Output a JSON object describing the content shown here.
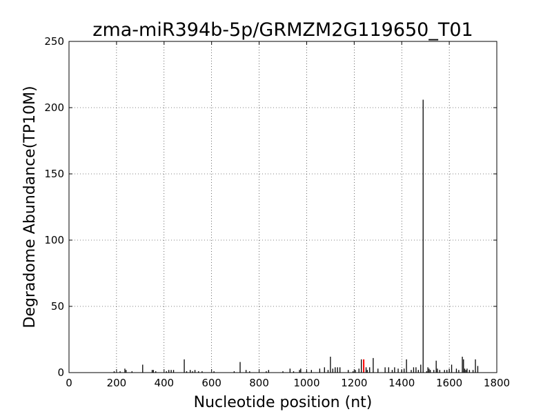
{
  "chart_data": {
    "type": "bar",
    "title": "zma-miR394b-5p/GRMZM2G119650_T01",
    "xlabel": "Nucleotide position (nt)",
    "ylabel": "Degradome Abundance(TP10M)",
    "xlim": [
      0,
      1800
    ],
    "ylim": [
      0,
      250
    ],
    "xticks": [
      0,
      200,
      400,
      600,
      800,
      1000,
      1200,
      1400,
      1600,
      1800
    ],
    "yticks": [
      0,
      50,
      100,
      150,
      200,
      250
    ],
    "grid": true,
    "bar_color": "#000000",
    "highlight_color": "#ff0000",
    "x": [
      190,
      215,
      235,
      240,
      265,
      310,
      350,
      355,
      365,
      410,
      420,
      430,
      440,
      485,
      495,
      510,
      520,
      530,
      545,
      560,
      610,
      695,
      720,
      745,
      760,
      830,
      840,
      900,
      930,
      945,
      970,
      975,
      1000,
      1020,
      1055,
      1075,
      1090,
      1100,
      1110,
      1120,
      1130,
      1140,
      1175,
      1195,
      1205,
      1220,
      1230,
      1250,
      1255,
      1265,
      1280,
      1300,
      1330,
      1345,
      1360,
      1370,
      1385,
      1400,
      1410,
      1420,
      1440,
      1450,
      1460,
      1470,
      1480,
      1490,
      1505,
      1510,
      1515,
      1520,
      1535,
      1545,
      1550,
      1560,
      1580,
      1590,
      1600,
      1610,
      1630,
      1640,
      1655,
      1660,
      1665,
      1670,
      1675,
      1685,
      1700,
      1710,
      1720
    ],
    "values": [
      1,
      1,
      3,
      2,
      1,
      6,
      2,
      2,
      1,
      1,
      2,
      2,
      2,
      10,
      1,
      2,
      1,
      2,
      1,
      1,
      1,
      1,
      8,
      2,
      1,
      1,
      2,
      1,
      3,
      1,
      2,
      3,
      1,
      2,
      3,
      4,
      2,
      12,
      3,
      4,
      4,
      4,
      2,
      1,
      2,
      3,
      10,
      4,
      2,
      4,
      11,
      3,
      4,
      4,
      2,
      4,
      3,
      2,
      3,
      10,
      2,
      4,
      4,
      2,
      6,
      206,
      1,
      4,
      3,
      2,
      2,
      9,
      3,
      2,
      2,
      2,
      3,
      6,
      3,
      2,
      12,
      10,
      3,
      2,
      3,
      2,
      2,
      10,
      5
    ],
    "highlight_x": [
      1240
    ],
    "highlight_values": [
      10
    ]
  }
}
